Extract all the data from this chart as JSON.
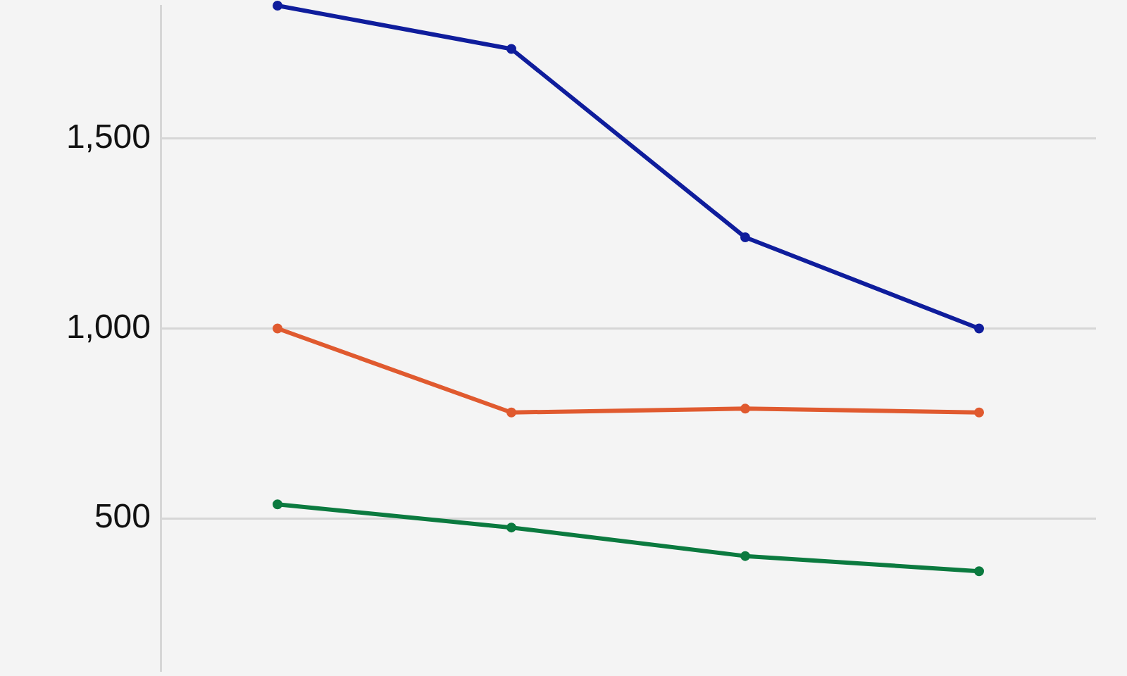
{
  "chart_data": {
    "type": "line",
    "categories": [
      null,
      null,
      null,
      null
    ],
    "series": [
      {
        "color": "#0f1d9c",
        "values": [
          1850,
          1736,
          1240,
          1000
        ]
      },
      {
        "color": "#e05a2f",
        "values": [
          1000,
          779,
          789,
          779
        ]
      },
      {
        "color": "#0b7a3f",
        "values": [
          537,
          476,
          401,
          361
        ]
      }
    ],
    "ylim": [
      100,
      1850
    ],
    "yticks": [
      500,
      {
        "value": 1000,
        "label": "1,000"
      },
      {
        "value": 1500,
        "label": "1,500"
      }
    ],
    "grid": "y",
    "tick_labels": "y",
    "marker": "circle",
    "line_style": "solid"
  }
}
